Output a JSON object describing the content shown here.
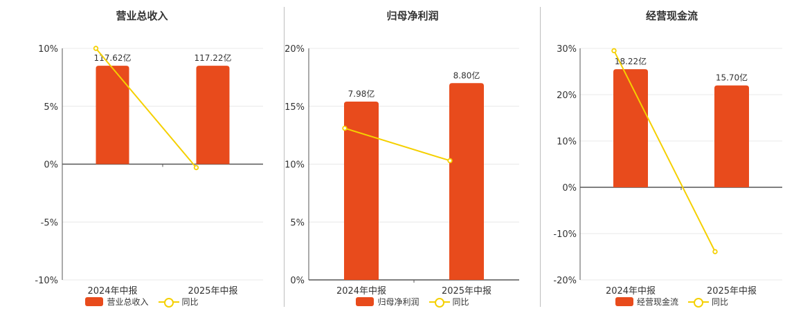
{
  "legend_line_label": "同比",
  "colors": {
    "bar": "#E84B1C",
    "line": "#F5D000"
  },
  "chart_data": [
    {
      "type": "bar",
      "title": "营业总收入",
      "categories": [
        "2024年中报",
        "2025年中报"
      ],
      "series": [
        {
          "name": "营业总收入",
          "axis": "left",
          "values": [
            8.5,
            8.5
          ],
          "labels": [
            "117.62亿",
            "117.22亿"
          ]
        },
        {
          "name": "同比",
          "type": "line",
          "values": [
            10.0,
            -0.3
          ]
        }
      ],
      "y_ticks": [
        "10%",
        "5%",
        "0%",
        "-5%",
        "-10%"
      ],
      "ylim": [
        -10,
        10
      ],
      "grid": true,
      "legend": "bottom"
    },
    {
      "type": "bar",
      "title": "归母净利润",
      "categories": [
        "2024年中报",
        "2025年中报"
      ],
      "series": [
        {
          "name": "归母净利润",
          "values": [
            15.4,
            17.0
          ],
          "labels": [
            "7.98亿",
            "8.80亿"
          ]
        },
        {
          "name": "同比",
          "type": "line",
          "values": [
            13.1,
            10.3
          ]
        }
      ],
      "y_ticks": [
        "20%",
        "15%",
        "10%",
        "5%",
        "0%"
      ],
      "ylim": [
        0,
        20
      ],
      "grid": true,
      "legend": "bottom"
    },
    {
      "type": "bar",
      "title": "经营现金流",
      "categories": [
        "2024年中报",
        "2025年中报"
      ],
      "series": [
        {
          "name": "经营现金流",
          "values": [
            25.5,
            22.0
          ],
          "labels": [
            "18.22亿",
            "15.70亿"
          ]
        },
        {
          "name": "同比",
          "type": "line",
          "values": [
            29.5,
            -13.9
          ]
        }
      ],
      "y_ticks": [
        "30%",
        "20%",
        "10%",
        "0%",
        "-10%",
        "-20%"
      ],
      "ylim": [
        -20,
        30
      ],
      "grid": true,
      "legend": "bottom"
    }
  ]
}
